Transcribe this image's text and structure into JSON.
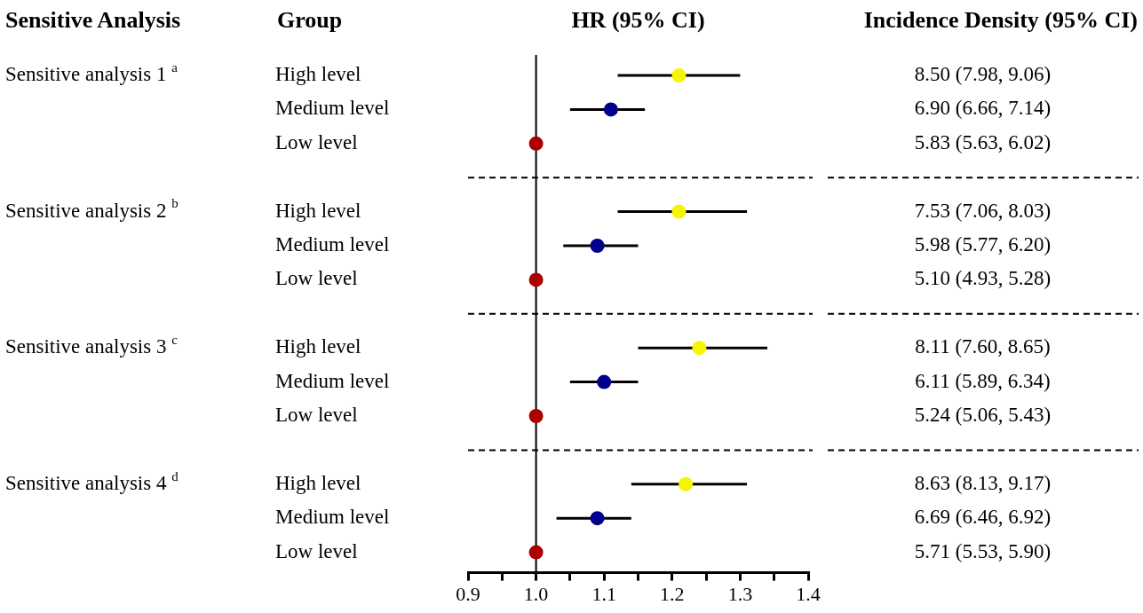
{
  "chart_data": {
    "type": "scatter",
    "orientation": "horizontal",
    "title": "HR (95% CI)",
    "ylabel": "Group",
    "marker": "circle",
    "categories": [
      "High level",
      "Medium level",
      "Low level",
      "High level",
      "Medium level",
      "Low level",
      "High level",
      "Medium level",
      "Low level",
      "High level",
      "Medium level",
      "Low level"
    ],
    "values": [
      1.21,
      1.11,
      1.0,
      1.21,
      1.09,
      1.0,
      1.24,
      1.1,
      1.0,
      1.22,
      1.09,
      1.0
    ],
    "errors": [
      [
        1.12,
        1.3
      ],
      [
        1.05,
        1.16
      ],
      null,
      [
        1.12,
        1.31
      ],
      [
        1.04,
        1.15
      ],
      null,
      [
        1.15,
        1.34
      ],
      [
        1.05,
        1.15
      ],
      null,
      [
        1.14,
        1.31
      ],
      [
        1.03,
        1.14
      ],
      null
    ],
    "colors": [
      "#f5f500",
      "#00008b",
      "#aa0000",
      "#f5f500",
      "#00008b",
      "#aa0000",
      "#f5f500",
      "#00008b",
      "#aa0000",
      "#f5f500",
      "#00008b",
      "#aa0000"
    ],
    "xlim": [
      0.9,
      1.4
    ],
    "xticks": [
      0.9,
      {
        "value": 0.95,
        "label": null
      },
      {
        "value": 1.0,
        "label": "1.0"
      },
      {
        "value": 1.05,
        "label": null
      },
      1.1,
      {
        "value": 1.15,
        "label": null
      },
      1.2,
      {
        "value": 1.25,
        "label": null
      },
      1.3,
      {
        "value": 1.35,
        "label": null
      },
      1.4
    ],
    "ref_lines": [
      {
        "axis": "x",
        "value": 1.0,
        "color": "#000000"
      }
    ],
    "annotations": [
      "Sensitive Analysis",
      "Incidence Density (95% CI)",
      "Sensitive analysis 1 $^{a}$",
      "Sensitive analysis 2 $^{b}$",
      "Sensitive analysis 3 $^{c}$",
      "Sensitive analysis 4 $^{d}$",
      "8.50 (7.98, 9.06)",
      "6.90 (6.66, 7.14)",
      "5.83 (5.63, 6.02)",
      "7.53 (7.06, 8.03)",
      "5.98 (5.77, 6.20)",
      "5.10 (4.93, 5.28)",
      "8.11 (7.60, 8.65)",
      "6.11 (5.89, 6.34)",
      "5.24 (5.06, 5.43)",
      "8.63 (8.13, 9.17)",
      "6.69 (6.46, 6.92)",
      "5.71 (5.53, 5.90)"
    ]
  }
}
